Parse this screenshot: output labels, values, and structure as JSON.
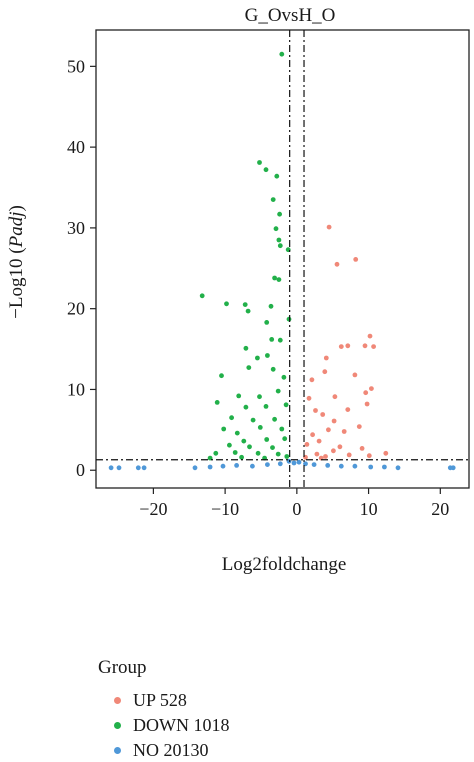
{
  "chart_data": {
    "type": "scatter",
    "title": "G_OvsH_O",
    "xlabel": "Log2foldchange",
    "ylabel_prefix": "−Log10 (",
    "ylabel_italic": "Padj",
    "ylabel_suffix": ")",
    "xlim": [
      -28,
      24
    ],
    "ylim": [
      -2.2,
      54.5
    ],
    "xticks": [
      -20,
      -10,
      0,
      10,
      20
    ],
    "xtick_labels": [
      "−20",
      "−10",
      "0",
      "10",
      "20"
    ],
    "yticks": [
      0,
      10,
      20,
      30,
      40,
      50
    ],
    "ytick_labels": [
      "0",
      "10",
      "20",
      "30",
      "40",
      "50"
    ],
    "threshold_lines": {
      "x": [
        -1,
        1
      ],
      "y": 1.3
    },
    "grid": false,
    "legend": {
      "title": "Group",
      "placement": "bottom",
      "entries": [
        {
          "label": "UP 528",
          "color": "#f08878"
        },
        {
          "label": "DOWN 1018",
          "color": "#22b04a"
        },
        {
          "label": "NO 20130",
          "color": "#4f98d8"
        }
      ]
    },
    "series": [
      {
        "name": "UP 528",
        "color": "#f08878",
        "points": [
          [
            4.5,
            30.1
          ],
          [
            8.2,
            26.1
          ],
          [
            5.6,
            25.5
          ],
          [
            10.2,
            16.6
          ],
          [
            7.1,
            15.4
          ],
          [
            10.7,
            15.3
          ],
          [
            6.2,
            15.3
          ],
          [
            9.5,
            15.4
          ],
          [
            4.1,
            13.9
          ],
          [
            3.9,
            12.2
          ],
          [
            8.1,
            11.8
          ],
          [
            2.1,
            11.2
          ],
          [
            10.4,
            10.1
          ],
          [
            9.6,
            9.6
          ],
          [
            5.3,
            9.1
          ],
          [
            1.7,
            8.9
          ],
          [
            9.8,
            8.2
          ],
          [
            2.6,
            7.4
          ],
          [
            7.1,
            7.5
          ],
          [
            3.6,
            6.9
          ],
          [
            5.2,
            6.1
          ],
          [
            8.7,
            5.4
          ],
          [
            4.4,
            5.0
          ],
          [
            6.6,
            4.8
          ],
          [
            12.4,
            2.1
          ],
          [
            2.2,
            4.4
          ],
          [
            3.1,
            3.6
          ],
          [
            1.4,
            3.2
          ],
          [
            6.0,
            2.9
          ],
          [
            9.1,
            2.7
          ],
          [
            5.1,
            2.4
          ],
          [
            2.8,
            2.0
          ],
          [
            7.3,
            1.9
          ],
          [
            10.1,
            1.8
          ],
          [
            4.0,
            1.7
          ],
          [
            1.2,
            1.6
          ],
          [
            3.4,
            1.5
          ]
        ]
      },
      {
        "name": "DOWN 1018",
        "color": "#22b04a",
        "points": [
          [
            -2.1,
            51.5
          ],
          [
            -5.2,
            38.1
          ],
          [
            -4.3,
            37.2
          ],
          [
            -2.8,
            36.4
          ],
          [
            -3.3,
            33.5
          ],
          [
            -2.4,
            31.7
          ],
          [
            -2.9,
            29.9
          ],
          [
            -2.5,
            28.5
          ],
          [
            -2.3,
            27.8
          ],
          [
            -3.1,
            23.8
          ],
          [
            -2.5,
            23.6
          ],
          [
            -1.2,
            27.3
          ],
          [
            -13.2,
            21.6
          ],
          [
            -9.8,
            20.6
          ],
          [
            -7.2,
            20.5
          ],
          [
            -6.8,
            19.7
          ],
          [
            -3.6,
            20.3
          ],
          [
            -1.1,
            18.7
          ],
          [
            -4.2,
            18.3
          ],
          [
            -3.5,
            16.2
          ],
          [
            -7.1,
            15.1
          ],
          [
            -2.3,
            16.1
          ],
          [
            -5.5,
            13.9
          ],
          [
            -4.1,
            14.2
          ],
          [
            -10.5,
            11.7
          ],
          [
            -6.7,
            12.7
          ],
          [
            -3.3,
            12.5
          ],
          [
            -1.8,
            11.5
          ],
          [
            -11.1,
            8.4
          ],
          [
            -8.1,
            9.2
          ],
          [
            -5.2,
            9.1
          ],
          [
            -2.6,
            9.8
          ],
          [
            -7.1,
            7.8
          ],
          [
            -4.3,
            7.9
          ],
          [
            -1.5,
            8.1
          ],
          [
            -9.1,
            6.5
          ],
          [
            -6.1,
            6.2
          ],
          [
            -3.1,
            6.3
          ],
          [
            -10.2,
            5.1
          ],
          [
            -8.3,
            4.6
          ],
          [
            -5.1,
            5.3
          ],
          [
            -2.1,
            5.1
          ],
          [
            -7.4,
            3.6
          ],
          [
            -4.2,
            3.8
          ],
          [
            -1.7,
            3.9
          ],
          [
            -9.4,
            3.1
          ],
          [
            -6.6,
            2.9
          ],
          [
            -3.4,
            2.8
          ],
          [
            -11.3,
            2.1
          ],
          [
            -8.6,
            2.2
          ],
          [
            -5.4,
            2.1
          ],
          [
            -2.6,
            2.0
          ],
          [
            -12.1,
            1.5
          ],
          [
            -7.7,
            1.6
          ],
          [
            -4.5,
            1.5
          ],
          [
            -1.4,
            1.7
          ]
        ]
      },
      {
        "name": "NO 20130",
        "color": "#4f98d8",
        "points": [
          [
            -25.9,
            0.3
          ],
          [
            -24.8,
            0.3
          ],
          [
            -22.1,
            0.3
          ],
          [
            -21.3,
            0.3
          ],
          [
            -14.2,
            0.3
          ],
          [
            -12.1,
            0.4
          ],
          [
            -10.3,
            0.5
          ],
          [
            -8.4,
            0.6
          ],
          [
            -6.2,
            0.5
          ],
          [
            -4.1,
            0.7
          ],
          [
            -2.3,
            0.8
          ],
          [
            -1.1,
            1.1
          ],
          [
            -0.4,
            0.9
          ],
          [
            0.3,
            1.0
          ],
          [
            1.2,
            0.8
          ],
          [
            2.4,
            0.7
          ],
          [
            4.3,
            0.6
          ],
          [
            6.2,
            0.5
          ],
          [
            8.1,
            0.5
          ],
          [
            10.3,
            0.4
          ],
          [
            12.2,
            0.4
          ],
          [
            14.1,
            0.3
          ],
          [
            21.4,
            0.3
          ],
          [
            21.8,
            0.3
          ]
        ]
      }
    ]
  }
}
